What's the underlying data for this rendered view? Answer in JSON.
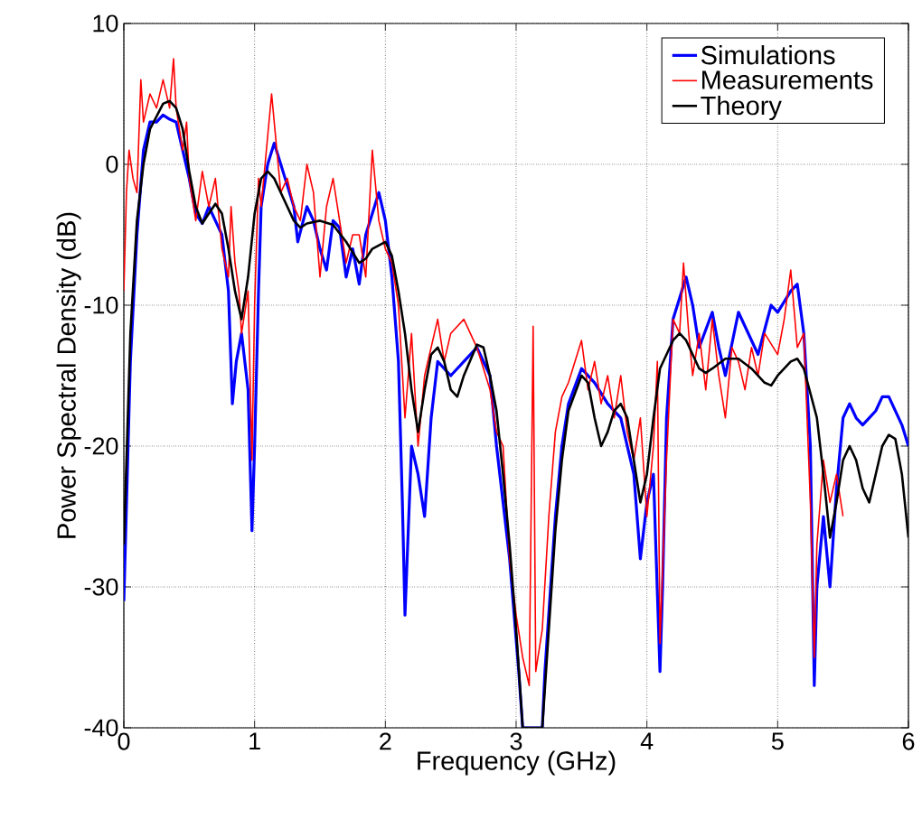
{
  "chart_data": {
    "type": "line",
    "xlabel": "Frequency (GHz)",
    "ylabel": "Power Spectral Density (dB)",
    "xlim": [
      0,
      6
    ],
    "ylim": [
      -40,
      10
    ],
    "xticks": [
      0,
      1,
      2,
      3,
      4,
      5,
      6
    ],
    "yticks": [
      -40,
      -30,
      -20,
      -10,
      0,
      10
    ],
    "grid": true,
    "legend": "top right",
    "series": [
      {
        "name": "Simulations",
        "color": "#0000ff",
        "x": [
          0,
          0.05,
          0.1,
          0.15,
          0.2,
          0.25,
          0.3,
          0.35,
          0.4,
          0.45,
          0.5,
          0.55,
          0.6,
          0.65,
          0.7,
          0.75,
          0.8,
          0.83,
          0.86,
          0.9,
          0.95,
          0.98,
          1.0,
          1.03,
          1.05,
          1.1,
          1.15,
          1.2,
          1.25,
          1.3,
          1.33,
          1.4,
          1.45,
          1.5,
          1.55,
          1.6,
          1.65,
          1.7,
          1.75,
          1.8,
          1.85,
          1.9,
          1.95,
          2.0,
          2.05,
          2.1,
          2.13,
          2.15,
          2.2,
          2.25,
          2.3,
          2.35,
          2.4,
          2.5,
          2.6,
          2.7,
          2.8,
          2.85,
          2.95,
          3.02,
          3.05,
          3.2,
          3.22,
          3.3,
          3.35,
          3.4,
          3.5,
          3.6,
          3.7,
          3.75,
          3.8,
          3.9,
          3.95,
          4.0,
          4.05,
          4.1,
          4.12,
          4.15,
          4.2,
          4.3,
          4.35,
          4.4,
          4.5,
          4.55,
          4.6,
          4.7,
          4.8,
          4.85,
          4.95,
          5.0,
          5.1,
          5.15,
          5.2,
          5.25,
          5.28,
          5.3,
          5.35,
          5.4,
          5.45,
          5.5,
          5.55,
          5.6,
          5.65,
          5.7,
          5.75,
          5.8,
          5.85,
          5.9,
          5.95,
          6.0
        ],
        "values": [
          -31,
          -14,
          -5,
          1,
          3,
          3,
          3.5,
          3.2,
          3,
          1,
          -1,
          -3.5,
          -4.2,
          -3,
          -4,
          -5,
          -9,
          -17,
          -14,
          -12,
          -16,
          -26,
          -20,
          -9,
          -3,
          0,
          1.5,
          0,
          -1.5,
          -3,
          -5.5,
          -3,
          -4,
          -6,
          -7.5,
          -4,
          -4.5,
          -8,
          -6,
          -8.5,
          -5,
          -3.5,
          -2,
          -4,
          -8,
          -14,
          -24,
          -32,
          -20,
          -22,
          -25,
          -18,
          -14,
          -15,
          -14,
          -13,
          -15,
          -20,
          -28,
          -36,
          -40,
          -40,
          -36,
          -25,
          -20,
          -17,
          -14.5,
          -15.5,
          -17,
          -17.5,
          -18,
          -22,
          -28,
          -24,
          -22,
          -36,
          -30,
          -18,
          -11,
          -8,
          -10,
          -13,
          -10.5,
          -13,
          -15,
          -10.5,
          -12.5,
          -13.5,
          -10,
          -10.5,
          -9,
          -8.5,
          -12,
          -20,
          -37,
          -30,
          -25,
          -30,
          -23,
          -18,
          -17,
          -18,
          -18.5,
          -18,
          -17.5,
          -16.5,
          -16.5,
          -17.5,
          -18.5,
          -20
        ]
      },
      {
        "name": "Measurements",
        "color": "#ff0000",
        "x": [
          0,
          0.02,
          0.04,
          0.07,
          0.1,
          0.13,
          0.15,
          0.2,
          0.25,
          0.3,
          0.35,
          0.38,
          0.4,
          0.45,
          0.48,
          0.5,
          0.55,
          0.6,
          0.65,
          0.7,
          0.75,
          0.8,
          0.82,
          0.85,
          0.88,
          0.9,
          0.95,
          0.98,
          1.0,
          1.03,
          1.05,
          1.1,
          1.13,
          1.15,
          1.2,
          1.25,
          1.3,
          1.35,
          1.4,
          1.45,
          1.5,
          1.55,
          1.6,
          1.65,
          1.7,
          1.75,
          1.8,
          1.85,
          1.9,
          1.95,
          2.0,
          2.05,
          2.1,
          2.15,
          2.2,
          2.25,
          2.3,
          2.35,
          2.4,
          2.45,
          2.5,
          2.6,
          2.7,
          2.8,
          2.85,
          2.9,
          2.95,
          3.0,
          3.05,
          3.1,
          3.13,
          3.15,
          3.2,
          3.25,
          3.3,
          3.35,
          3.4,
          3.45,
          3.5,
          3.55,
          3.6,
          3.65,
          3.7,
          3.75,
          3.8,
          3.85,
          3.9,
          3.95,
          4.0,
          4.05,
          4.08,
          4.1,
          4.15,
          4.2,
          4.25,
          4.28,
          4.32,
          4.35,
          4.4,
          4.45,
          4.5,
          4.55,
          4.6,
          4.65,
          4.7,
          4.75,
          4.8,
          4.85,
          4.9,
          5.0,
          5.05,
          5.1,
          5.15,
          5.2,
          5.25,
          5.28,
          5.3,
          5.35,
          5.4,
          5.45,
          5.5
        ],
        "values": [
          -9,
          -2,
          1,
          -1,
          -2,
          6,
          3,
          5,
          4,
          6,
          4,
          7.5,
          4,
          1,
          3,
          -1,
          -4,
          -0.5,
          -3,
          -1,
          -6,
          -8,
          -3,
          -7,
          -9,
          -12,
          -9,
          -21,
          -10,
          -1,
          -3,
          2,
          5,
          3,
          -2,
          -1,
          -3,
          -4,
          0,
          -2,
          -8,
          -3,
          -1,
          -4,
          -7,
          -5,
          -5,
          -8,
          1,
          -4,
          -6,
          -7,
          -10,
          -18,
          -12,
          -20,
          -15,
          -13,
          -11,
          -14,
          -12,
          -11,
          -13,
          -16,
          -19,
          -20,
          -28,
          -32,
          -35,
          -37,
          -11.5,
          -36,
          -33,
          -25,
          -19,
          -16.5,
          -15.5,
          -14,
          -12.5,
          -16,
          -14,
          -17,
          -15,
          -18,
          -15,
          -19,
          -21,
          -18,
          -25,
          -20,
          -14,
          -34,
          -21,
          -11,
          -12,
          -7,
          -12,
          -15,
          -12,
          -16,
          -11,
          -15,
          -18,
          -13,
          -14,
          -16,
          -13,
          -15,
          -12,
          -13.5,
          -11,
          -7.5,
          -13,
          -12,
          -24,
          -35,
          -27,
          -21,
          -24,
          -22,
          -25
        ]
      },
      {
        "name": "Theory",
        "color": "#000000",
        "x": [
          0,
          0.05,
          0.1,
          0.15,
          0.2,
          0.3,
          0.35,
          0.4,
          0.45,
          0.5,
          0.55,
          0.6,
          0.65,
          0.7,
          0.75,
          0.8,
          0.85,
          0.9,
          0.95,
          1.0,
          1.05,
          1.1,
          1.15,
          1.2,
          1.3,
          1.35,
          1.4,
          1.5,
          1.6,
          1.7,
          1.8,
          1.85,
          1.9,
          2.0,
          2.05,
          2.1,
          2.15,
          2.2,
          2.25,
          2.3,
          2.35,
          2.4,
          2.45,
          2.5,
          2.55,
          2.6,
          2.7,
          2.75,
          2.8,
          2.85,
          2.9,
          2.95,
          3.0,
          3.05,
          3.2,
          3.25,
          3.3,
          3.35,
          3.4,
          3.5,
          3.55,
          3.6,
          3.65,
          3.7,
          3.75,
          3.8,
          3.85,
          3.9,
          3.95,
          4.0,
          4.05,
          4.1,
          4.2,
          4.25,
          4.3,
          4.4,
          4.45,
          4.5,
          4.6,
          4.7,
          4.8,
          4.9,
          4.95,
          5.0,
          5.1,
          5.15,
          5.2,
          5.3,
          5.35,
          5.4,
          5.45,
          5.5,
          5.55,
          5.6,
          5.65,
          5.7,
          5.75,
          5.8,
          5.85,
          5.9,
          5.95,
          6.0
        ],
        "values": [
          -27,
          -12,
          -4,
          0,
          2.5,
          4.3,
          4.5,
          4,
          2.5,
          -0.5,
          -3,
          -4.2,
          -3.5,
          -2.8,
          -3.5,
          -6,
          -9,
          -11,
          -8,
          -3.5,
          -1,
          -0.5,
          -1,
          -2,
          -4,
          -4.5,
          -4.2,
          -4,
          -4.3,
          -5.5,
          -7,
          -6.7,
          -6,
          -5.5,
          -6.5,
          -9,
          -12,
          -16,
          -19,
          -16,
          -13.5,
          -13,
          -14,
          -16,
          -16.5,
          -15,
          -12.8,
          -13,
          -15,
          -17.5,
          -22,
          -27,
          -33,
          -40,
          -40,
          -33,
          -26,
          -21,
          -17.5,
          -15,
          -15.5,
          -18,
          -20,
          -19,
          -17.5,
          -17,
          -18,
          -21,
          -24,
          -22,
          -18,
          -14.5,
          -12.5,
          -12,
          -12.5,
          -14.5,
          -14.8,
          -14.5,
          -13.8,
          -13.8,
          -14.5,
          -15.5,
          -15.7,
          -15,
          -14,
          -13.8,
          -14.5,
          -18,
          -22,
          -26.5,
          -24,
          -21,
          -20,
          -21,
          -23,
          -24,
          -22,
          -20,
          -19.2,
          -19.5,
          -22,
          -26.5
        ]
      }
    ]
  }
}
